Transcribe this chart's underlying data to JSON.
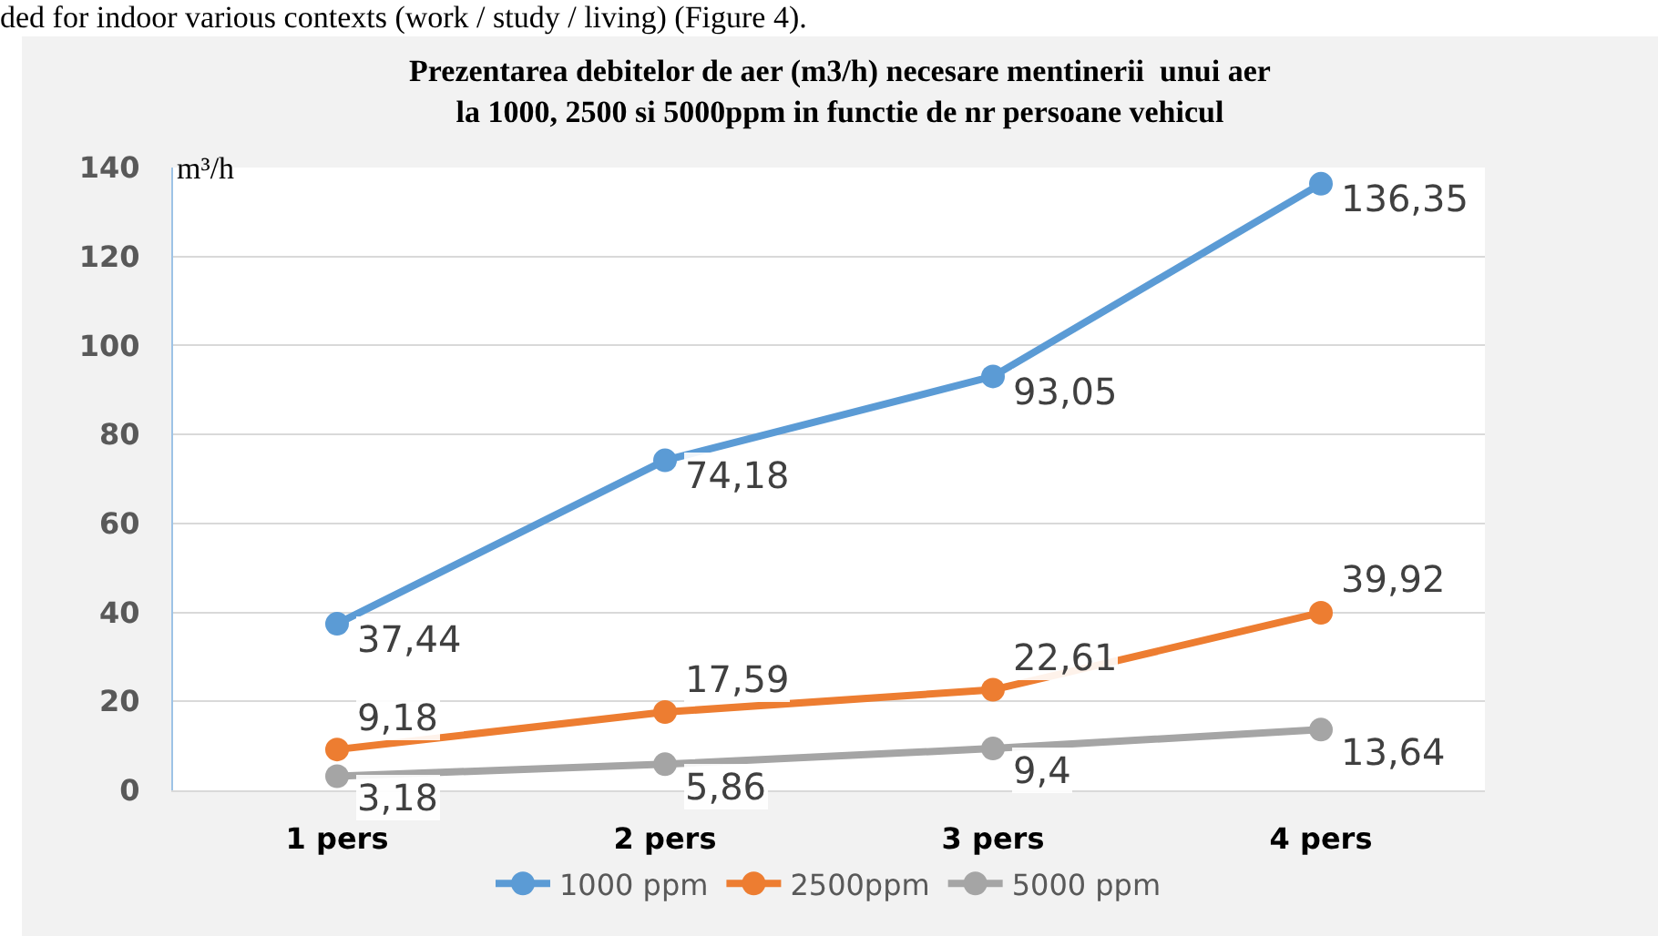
{
  "chart_data": {
    "type": "line",
    "title": "Prezentarea debitelor de aer (m3/h) necesare mentinerii  unui aer\nla 1000, 2500 si 5000ppm in functie de nr persoane vehicul",
    "ylabel": "m³/h",
    "annotations": [
      "ded for indoor various contexts (work / study / living) (Figure 4)."
    ],
    "categories": [
      "1 pers",
      "2 pers",
      "3 pers",
      "4 pers"
    ],
    "series": [
      {
        "name": "1000 ppm",
        "color": "#5b9bd5",
        "values": [
          37.44,
          74.18,
          93.05,
          136.35
        ],
        "value_labels": [
          "37,44",
          "74,18",
          "93,05",
          "136,35"
        ]
      },
      {
        "name": "2500ppm",
        "color": "#ed7d31",
        "values": [
          9.18,
          17.59,
          22.61,
          39.92
        ],
        "value_labels": [
          "9,18",
          "17,59",
          "22,61",
          "39,92"
        ]
      },
      {
        "name": "5000 ppm",
        "color": "#a5a5a5",
        "values": [
          3.18,
          5.86,
          9.4,
          13.64
        ],
        "value_labels": [
          "3,18",
          "5,86",
          "9,4",
          "13,64"
        ]
      }
    ],
    "ylim": [
      0,
      140
    ],
    "yticks": [
      0,
      20,
      40,
      60,
      80,
      100,
      120,
      140
    ],
    "grid": "y",
    "legend": "bottom",
    "marker": "circle",
    "line_style": "solid"
  }
}
